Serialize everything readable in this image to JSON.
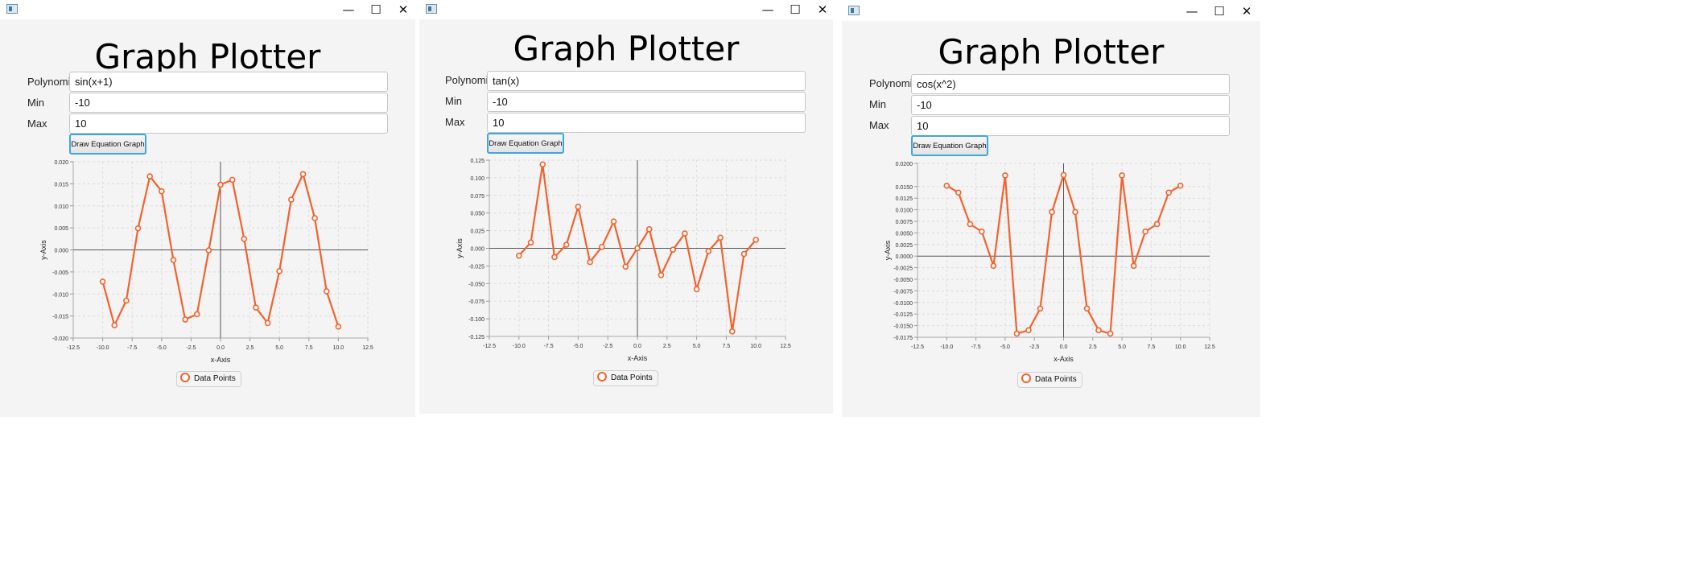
{
  "colors": {
    "series": "#f3622d",
    "accent": "#3ea6e2",
    "window_bg": "#f4f4f4"
  },
  "windows": [
    {
      "window_controls": {
        "minimize": "—",
        "maximize": "☐",
        "close": "✕"
      },
      "title": "Graph Plotter",
      "labels": {
        "polynomial": "Polynomial",
        "min": "Min",
        "max": "Max"
      },
      "inputs": {
        "polynomial": "sin(x+1)",
        "min": "-10",
        "max": "10"
      },
      "button_label": "Draw Equation Graph",
      "chart_data": {
        "type": "line",
        "xlabel": "x-Axis",
        "ylabel": "y-Axis",
        "xlim": [
          -12.5,
          12.5
        ],
        "ylim": [
          -0.02,
          0.02
        ],
        "x_ticks": [
          "-12.5",
          "-10.0",
          "-7.5",
          "-5.0",
          "-2.5",
          "0.0",
          "2.5",
          "5.0",
          "7.5",
          "10.0",
          "12.5"
        ],
        "y_ticks": [
          "0.020",
          "0.015",
          "0.010",
          "0.005",
          "0.000",
          "-0.005",
          "-0.010",
          "-0.015",
          "-0.020"
        ],
        "grid": true,
        "series": [
          {
            "name": "Data Points",
            "x": [
              -10,
              -9,
              -8,
              -7,
              -6,
              -5,
              -4,
              -3,
              -2,
              -1,
              0,
              1,
              2,
              3,
              4,
              5,
              6,
              7,
              8,
              9,
              10
            ],
            "y": [
              -0.0072,
              -0.0171,
              -0.0115,
              0.0049,
              0.0167,
              0.0133,
              -0.0023,
              -0.0158,
              -0.0146,
              -0.0001,
              0.0148,
              0.0159,
              0.0025,
              -0.0131,
              -0.0166,
              -0.0048,
              0.0114,
              0.0172,
              0.0072,
              -0.0094,
              -0.0174
            ]
          }
        ]
      }
    },
    {
      "window_controls": {
        "minimize": "—",
        "maximize": "☐",
        "close": "✕"
      },
      "title": "Graph Plotter",
      "labels": {
        "polynomial": "Polynomial",
        "min": "Min",
        "max": "Max"
      },
      "inputs": {
        "polynomial": "tan(x)",
        "min": "-10",
        "max": "10"
      },
      "button_label": "Draw Equation Graph",
      "chart_data": {
        "type": "line",
        "xlabel": "x-Axis",
        "ylabel": "y-Axis",
        "xlim": [
          -12.5,
          12.5
        ],
        "ylim": [
          -0.125,
          0.125
        ],
        "x_ticks": [
          "-12.5",
          "-10.0",
          "-7.5",
          "-5.0",
          "-2.5",
          "0.0",
          "2.5",
          "5.0",
          "7.5",
          "10.0",
          "12.5"
        ],
        "y_ticks": [
          "0.125",
          "0.100",
          "0.075",
          "0.050",
          "0.025",
          "0.000",
          "-0.025",
          "-0.050",
          "-0.075",
          "-0.100",
          "-0.125"
        ],
        "grid": true,
        "series": [
          {
            "name": "Data Points",
            "x": [
              -10,
              -9,
              -8,
              -7,
              -6,
              -5,
              -4,
              -3,
              -2,
              -1,
              0,
              1,
              2,
              3,
              4,
              5,
              6,
              7,
              8,
              9,
              10
            ],
            "y": [
              -0.0105,
              0.0082,
              0.119,
              -0.0125,
              0.005,
              0.059,
              -0.0195,
              0.002,
              0.038,
              -0.026,
              0.0,
              0.027,
              -0.038,
              -0.002,
              0.021,
              -0.058,
              -0.004,
              0.015,
              -0.118,
              -0.008,
              0.012
            ]
          }
        ]
      }
    },
    {
      "window_controls": {
        "minimize": "—",
        "maximize": "☐",
        "close": "✕"
      },
      "title": "Graph Plotter",
      "labels": {
        "polynomial": "Polynomial",
        "min": "Min",
        "max": "Max"
      },
      "inputs": {
        "polynomial": "cos(x^2)",
        "min": "-10",
        "max": "10"
      },
      "button_label": "Draw Equation Graph",
      "chart_data": {
        "type": "line",
        "xlabel": "x-Axis",
        "ylabel": "y-Axis",
        "xlim": [
          -12.5,
          12.5
        ],
        "ylim": [
          -0.0175,
          0.02
        ],
        "x_ticks": [
          "-12.5",
          "-10.0",
          "-7.5",
          "-5.0",
          "-2.5",
          "0.0",
          "2.5",
          "5.0",
          "7.5",
          "10.0",
          "12.5"
        ],
        "y_ticks": [
          "0.0200",
          "0.0150",
          "0.0125",
          "0.0100",
          "0.0075",
          "0.0050",
          "0.0025",
          "0.0000",
          "-0.0025",
          "-0.0050",
          "-0.0075",
          "-0.0100",
          "-0.0125",
          "-0.0150",
          "-0.0175"
        ],
        "y_tick_values": [
          0.02,
          0.015,
          0.0125,
          0.01,
          0.0075,
          0.005,
          0.0025,
          0,
          -0.0025,
          -0.005,
          -0.0075,
          -0.01,
          -0.0125,
          -0.015,
          -0.0175
        ],
        "grid": true,
        "series": [
          {
            "name": "Data Points",
            "x": [
              -10,
              -9,
              -8,
              -7,
              -6,
              -5,
              -4,
              -3,
              -2,
              -1,
              0,
              1,
              2,
              3,
              4,
              5,
              6,
              7,
              8,
              9,
              10
            ],
            "y": [
              0.0152,
              0.0137,
              0.0069,
              0.0053,
              -0.0021,
              0.0174,
              -0.0167,
              -0.016,
              -0.0113,
              0.0095,
              0.0175,
              0.0095,
              -0.0113,
              -0.016,
              -0.0167,
              0.0174,
              -0.0021,
              0.0053,
              0.0069,
              0.0137,
              0.0152
            ]
          }
        ]
      }
    }
  ]
}
